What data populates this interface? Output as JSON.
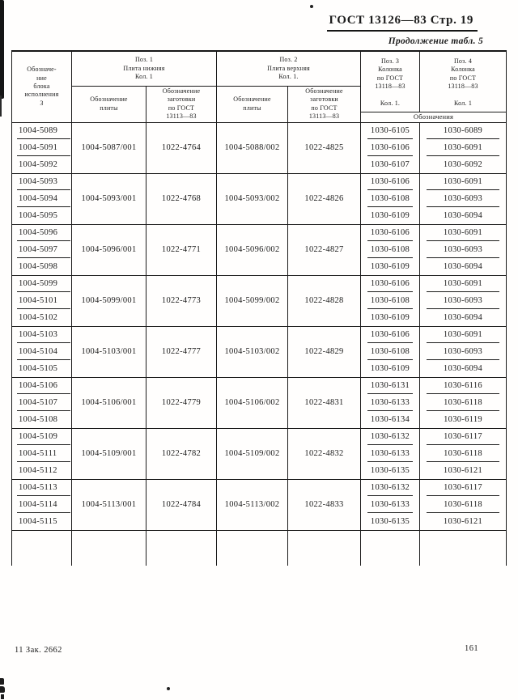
{
  "page": {
    "doc_title": "ГОСТ 13126—83 Стр. 19",
    "continuation_label": "Продолжение табл. 5",
    "footer_left": "11 Зак. 2662",
    "page_number": "161"
  },
  "table": {
    "headers": {
      "block": "Обозначе-\nние\nблока\nисполнения\n3",
      "pos1_group": "Поз. 1\nПлита нижняя\nКол. 1",
      "pos2_group": "Поз. 2\nПлита верхняя\nКол. 1.",
      "pos1_plate": "Обозначение\nплиты",
      "pos1_blank": "Обозначение\nзаготовки\nпо ГОСТ\n13113—83",
      "pos2_plate": "Обозначение\nплиты",
      "pos2_blank": "Обозначение\nзаготовки\nпо ГОСТ\n13113—83",
      "pos3": "Поз. 3\nКолонка\nпо ГОСТ\n13118—83\n \nКол. 1.",
      "pos4": "Поз. 4\nКолонка\nпо ГОСТ\n13118—83\n \nКол. 1",
      "designations": "Обозначения"
    },
    "groups": [
      {
        "block": [
          "1004-5089",
          "1004-5091",
          "1004-5092"
        ],
        "plate1": "1004-5087/001",
        "blank1": "1022-4764",
        "plate2": "1004-5088/002",
        "blank2": "1022-4825",
        "pos3": [
          "1030-6105",
          "1030-6106",
          "1030-6107"
        ],
        "pos4": [
          "1030-6089",
          "1030-6091",
          "1030-6092"
        ]
      },
      {
        "block": [
          "1004-5093",
          "1004-5094",
          "1004-5095"
        ],
        "plate1": "1004-5093/001",
        "blank1": "1022-4768",
        "plate2": "1004-5093/002",
        "blank2": "1022-4826",
        "pos3": [
          "1030-6106",
          "1030-6108",
          "1030-6109"
        ],
        "pos4": [
          "1030-6091",
          "1030-6093",
          "1030-6094"
        ]
      },
      {
        "block": [
          "1004-5096",
          "1004-5097",
          "1004-5098"
        ],
        "plate1": "1004-5096/001",
        "blank1": "1022-4771",
        "plate2": "1004-5096/002",
        "blank2": "1022-4827",
        "pos3": [
          "1030-6106",
          "1030-6108",
          "1030-6109"
        ],
        "pos4": [
          "1030-6091",
          "1030-6093",
          "1030-6094"
        ]
      },
      {
        "block": [
          "1004-5099",
          "1004-5101",
          "1004-5102"
        ],
        "plate1": "1004-5099/001",
        "blank1": "1022-4773",
        "plate2": "1004-5099/002",
        "blank2": "1022-4828",
        "pos3": [
          "1030-6106",
          "1030-6108",
          "1030-6109"
        ],
        "pos4": [
          "1030-6091",
          "1030-6093",
          "1030-6094"
        ]
      },
      {
        "block": [
          "1004-5103",
          "1004-5104",
          "1004-5105"
        ],
        "plate1": "1004-5103/001",
        "blank1": "1022-4777",
        "plate2": "1004-5103/002",
        "blank2": "1022-4829",
        "pos3": [
          "1030-6106",
          "1030-6108",
          "1030-6109"
        ],
        "pos4": [
          "1030-6091",
          "1030-6093",
          "1030-6094"
        ]
      },
      {
        "block": [
          "1004-5106",
          "1004-5107",
          "1004-5108"
        ],
        "plate1": "1004-5106/001",
        "blank1": "1022-4779",
        "plate2": "1004-5106/002",
        "blank2": "1022-4831",
        "pos3": [
          "1030-6131",
          "1030-6133",
          "1030-6134"
        ],
        "pos4": [
          "1030-6116",
          "1030-6118",
          "1030-6119"
        ]
      },
      {
        "block": [
          "1004-5109",
          "1004-5111",
          "1004-5112"
        ],
        "plate1": "1004-5109/001",
        "blank1": "1022-4782",
        "plate2": "1004-5109/002",
        "blank2": "1022-4832",
        "pos3": [
          "1030-6132",
          "1030-6133",
          "1030-6135"
        ],
        "pos4": [
          "1030-6117",
          "1030-6118",
          "1030-6121"
        ]
      },
      {
        "block": [
          "1004-5113",
          "1004-5114",
          "1004-5115"
        ],
        "plate1": "1004-5113/001",
        "blank1": "1022-4784",
        "plate2": "1004-5113/002",
        "blank2": "1022-4833",
        "pos3": [
          "1030-6132",
          "1030-6133",
          "1030-6135"
        ],
        "pos4": [
          "1030-6117",
          "1030-6118",
          "1030-6121"
        ]
      }
    ]
  }
}
